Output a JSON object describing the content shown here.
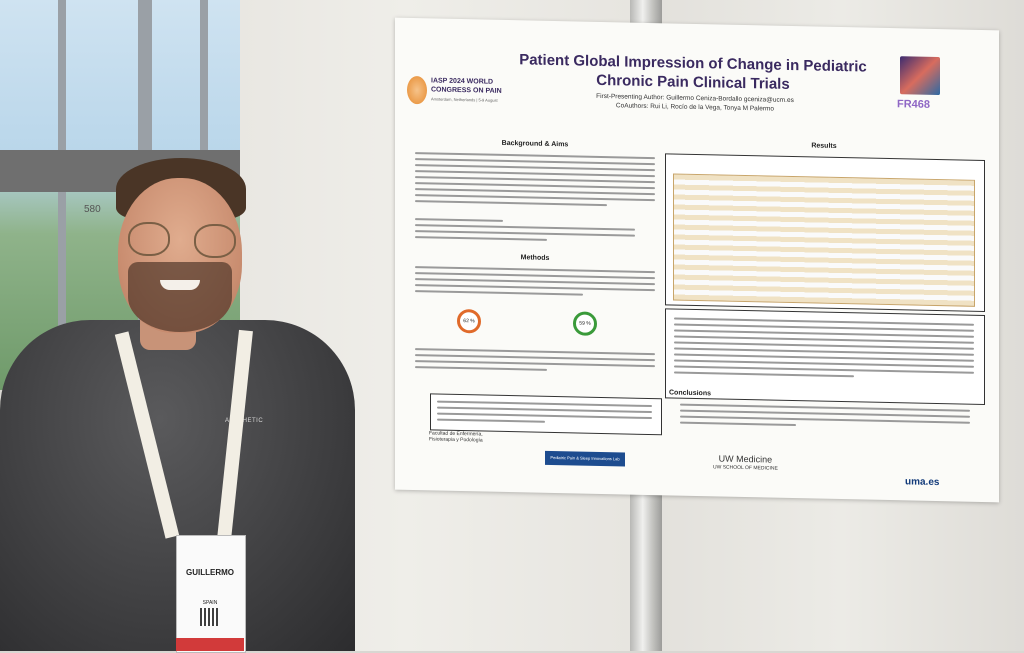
{
  "scene": {
    "booth_number": "580"
  },
  "poster": {
    "congress_name": "IASP 2024 WORLD CONGRESS ON PAIN",
    "congress_place": "Amsterdam, Netherlands | 5-9 August",
    "title_line1": "Patient Global Impression of Change in Pediatric",
    "title_line2": "Chronic Pain Clinical Trials",
    "presenting_author": "First-Presenting Author: Guillermo Ceniza-Bordallo gceniza@ucm.es",
    "co_authors": "CoAuthors: Rui Li, Rocío de la Vega, Tonya M Palermo",
    "poster_code": "FR468",
    "section_background": "Background & Aims",
    "section_methods": "Methods",
    "section_results": "Results",
    "section_conclusions": "Conclusions",
    "gauge_1": "62 %",
    "gauge_2": "59 %",
    "logo_uw_line1": "UW Medicine",
    "logo_uw_line2": "UW SCHOOL OF MEDICINE",
    "logo_uma": "uma.es",
    "logo_faculty": "Facultad de Enfermería, Fisioterapia y Podología",
    "logo_strip": "Pediatric Pain & Sleep Innovations Lab"
  },
  "badge": {
    "name": "GUILLERMO",
    "country": "SPAIN"
  },
  "shirt": {
    "print_text": "AESTHETIC"
  },
  "colors": {
    "poster_title": "#3a2a60",
    "poster_code": "#8f67c5",
    "table_accent": "#c8a56a",
    "shirt": "#3a3a3c"
  }
}
